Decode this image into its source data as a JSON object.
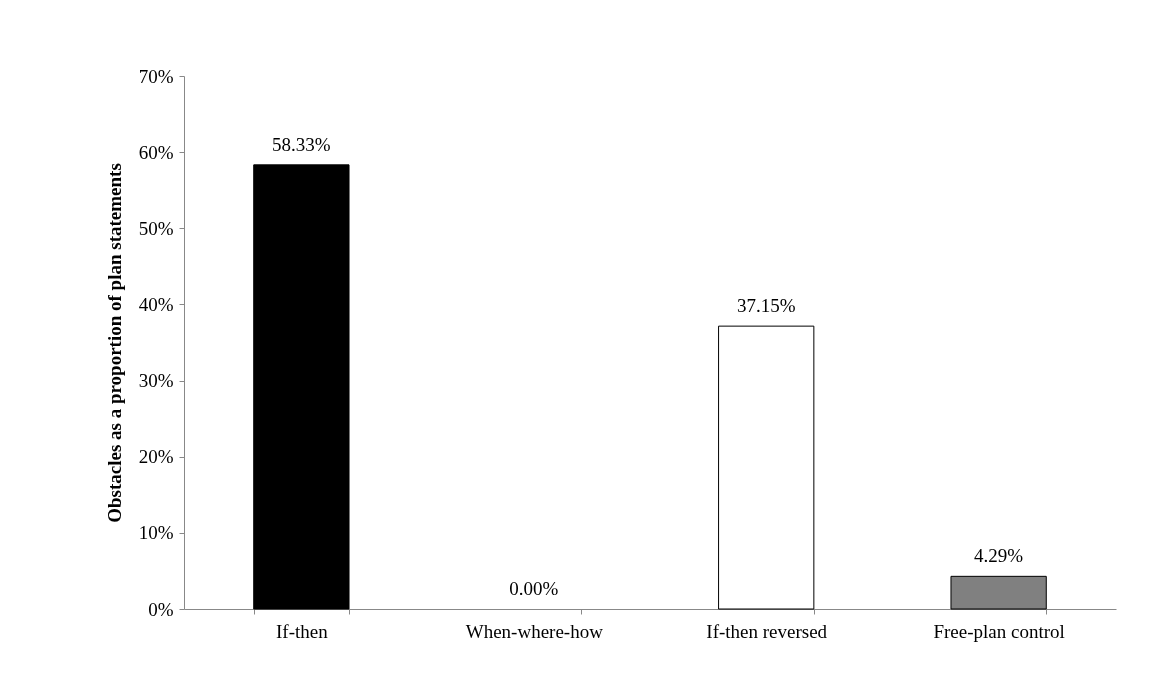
{
  "chart_data": {
    "type": "bar",
    "ylabel": "Obstacles as a proportion of plan statements",
    "categories": [
      "If-then",
      "When-where-how",
      "If-then reversed",
      "Free-plan control"
    ],
    "values": [
      58.33,
      0.0,
      37.15,
      4.29
    ],
    "value_labels": [
      "58.33%",
      "0.00%",
      "37.15%",
      "4.29%"
    ],
    "colors": [
      "#000000",
      "#ffffff",
      "#ffffff",
      "#808080"
    ],
    "ylim": [
      0,
      70
    ],
    "yticks": [
      {
        "value": 0,
        "label": "0%"
      },
      {
        "value": 10,
        "label": "10%"
      },
      {
        "value": 20,
        "label": "20%"
      },
      {
        "value": 30,
        "label": "30%"
      },
      {
        "value": 40,
        "label": "40%"
      },
      {
        "value": 50,
        "label": "50%"
      },
      {
        "value": 60,
        "label": "60%"
      },
      {
        "value": 70,
        "label": "70%"
      }
    ],
    "grid": false
  }
}
